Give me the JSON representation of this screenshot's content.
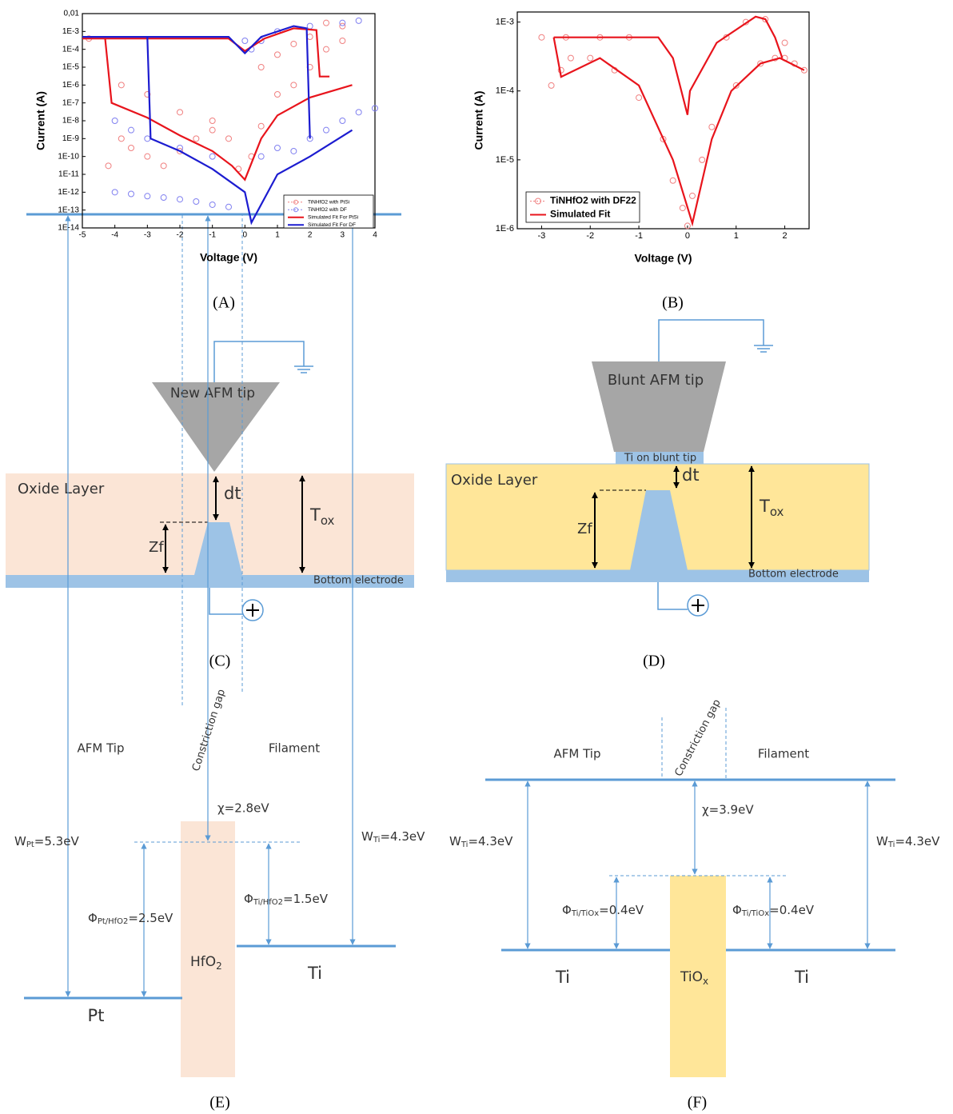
{
  "chart_data": [
    {
      "type": "line",
      "caption": "(A)",
      "x_label": "Voltage (V)",
      "y_label": "Current (A)",
      "ylog": true,
      "xlim": [
        -5,
        4
      ],
      "xticks": [
        -5,
        -4,
        -3,
        -2,
        -1,
        0,
        1,
        2,
        3,
        4
      ],
      "ylim": [
        1e-14,
        0.01
      ],
      "yticks": [
        {
          "value": 0.01,
          "label": "0,01"
        },
        {
          "value": 0.001,
          "label": "1E-3"
        },
        {
          "value": 0.0001,
          "label": "1E-4"
        },
        {
          "value": 1e-05,
          "label": "1E-5"
        },
        {
          "value": 1e-06,
          "label": "1E-6"
        },
        {
          "value": 1e-07,
          "label": "1E-7"
        },
        {
          "value": 1e-08,
          "label": "1E-8"
        },
        {
          "value": 1e-09,
          "label": "1E-9"
        },
        {
          "value": 1e-10,
          "label": "1E-10"
        },
        {
          "value": 1e-11,
          "label": "1E-11"
        },
        {
          "value": 1e-12,
          "label": "1E-12"
        },
        {
          "value": 1e-13,
          "label": "1E-13"
        },
        {
          "value": 1e-14,
          "label": "1E-14"
        }
      ],
      "legend": "lower right",
      "series": [
        {
          "name": "TiNHfO2 with PtSi",
          "color": "#f08080",
          "style": "markers",
          "x": [
            -4.8,
            -4.2,
            -3.8,
            -3.5,
            -3,
            -2.5,
            -2,
            -1.5,
            -1,
            -0.5,
            -0.2,
            0.2,
            0.5,
            1,
            1.5,
            2,
            2.5,
            3,
            -3.8,
            -3,
            -2,
            -1,
            0.5,
            1,
            1.5,
            2,
            2.5,
            3
          ],
          "values": [
            0.0004,
            3e-11,
            1e-09,
            3e-10,
            1e-10,
            3e-11,
            2e-10,
            1e-09,
            3e-09,
            1e-09,
            2e-11,
            1e-10,
            5e-09,
            3e-07,
            1e-06,
            1e-05,
            0.0001,
            0.0003,
            1e-06,
            3e-07,
            3e-08,
            1e-08,
            1e-05,
            5e-05,
            0.0002,
            0.0005,
            0.003,
            0.002
          ]
        },
        {
          "name": "TiNHfO2 with DF",
          "color": "#8080f0",
          "style": "markers",
          "x": [
            -4,
            -3.5,
            -3,
            -2.5,
            -2,
            -1.5,
            -1,
            -0.5,
            -4,
            -3.5,
            -3,
            -2,
            -1,
            0,
            0.5,
            1,
            1.5,
            2,
            2.5,
            3,
            3.5,
            4,
            0.2,
            0.5,
            1,
            2,
            3,
            3.5
          ],
          "values": [
            1e-12,
            8e-13,
            6e-13,
            5e-13,
            4e-13,
            3e-13,
            2e-13,
            1.5e-13,
            1e-08,
            3e-09,
            1e-09,
            3e-10,
            1e-10,
            0.0003,
            1e-10,
            3e-10,
            2e-10,
            1e-09,
            3e-09,
            1e-08,
            3e-08,
            5e-08,
            0.0001,
            0.0003,
            0.001,
            0.002,
            0.003,
            0.004
          ]
        },
        {
          "name": "Simulated Fit For PtSi",
          "color": "#e8141c",
          "style": "line",
          "x": [
            -5,
            -4.3,
            -4.1,
            -3,
            -2,
            -1,
            -0.4,
            0,
            0.5,
            1,
            2,
            3.3,
            null,
            -5,
            -0.5,
            0,
            0.6,
            1.5,
            2.2,
            2.3,
            2.6
          ],
          "values": [
            0.0004,
            0.0004,
            1e-07,
            1.5e-08,
            1.5e-09,
            2e-10,
            3e-11,
            5e-12,
            1e-09,
            2e-08,
            2e-07,
            1e-06,
            null,
            0.0004,
            0.0004,
            8e-05,
            0.0004,
            0.0015,
            0.0012,
            3e-06,
            3e-06
          ]
        },
        {
          "name": "Simulated Fit For DF",
          "color": "#1c1cd0",
          "style": "line",
          "x": [
            -5,
            -3,
            -2.9,
            -2,
            -1,
            0,
            0.2,
            1,
            2,
            3.3,
            null,
            -5,
            -0.5,
            0,
            0.5,
            1.5,
            1.9,
            2.0
          ],
          "values": [
            0.0005,
            0.0005,
            1e-09,
            2e-10,
            2e-11,
            1e-12,
            2e-14,
            1e-11,
            1e-10,
            3e-09,
            null,
            0.0005,
            0.0005,
            6e-05,
            0.0005,
            0.002,
            0.0015,
            1e-09
          ]
        }
      ]
    },
    {
      "type": "line",
      "caption": "(B)",
      "x_label": "Voltage (V)",
      "y_label": "Current (A)",
      "ylog": true,
      "xlim": [
        -3.5,
        2.5
      ],
      "xticks": [
        -3,
        -2,
        -1,
        0,
        1,
        2
      ],
      "ylim": [
        1e-06,
        0.0014
      ],
      "yticks": [
        {
          "value": 1e-06,
          "label": "1E-6"
        },
        {
          "value": 1e-05,
          "label": "1E-5"
        },
        {
          "value": 0.0001,
          "label": "1E-4"
        },
        {
          "value": 0.001,
          "label": "1E-3"
        }
      ],
      "legend": "lower left",
      "series": [
        {
          "name": "TiNHfO2 with DF22",
          "color": "#f08080",
          "style": "markers",
          "x": [
            -3,
            -2.8,
            -2.6,
            -2.4,
            -2,
            -1.5,
            -1,
            -0.5,
            -0.3,
            -0.1,
            0,
            0.1,
            0.3,
            0.5,
            1,
            1.5,
            1.8,
            2,
            2.2,
            2.4,
            -2.5,
            -1.8,
            -1.2,
            0.8,
            1.2,
            1.6,
            2.0
          ],
          "values": [
            0.0006,
            0.00012,
            0.0002,
            0.0003,
            0.0003,
            0.0002,
            8e-05,
            2e-05,
            5e-06,
            2e-06,
            1.1e-06,
            3e-06,
            1e-05,
            3e-05,
            0.00012,
            0.00025,
            0.0003,
            0.0003,
            0.00025,
            0.0002,
            0.0006,
            0.0006,
            0.0006,
            0.0006,
            0.001,
            0.0011,
            0.0005
          ]
        },
        {
          "name": "Simulated Fit",
          "color": "#e8141c",
          "style": "line",
          "x": [
            -2.75,
            -2.6,
            -1.8,
            -1,
            -0.3,
            0.1,
            0.5,
            0.9,
            1.5,
            1.9,
            2.4,
            null,
            -2.75,
            -0.6,
            -0.3,
            0,
            0.05,
            0.6,
            1.4,
            1.6,
            1.8,
            1.95
          ],
          "values": [
            0.0006,
            0.00016,
            0.0003,
            0.00012,
            1e-05,
            1.2e-06,
            2e-05,
            0.0001,
            0.00025,
            0.0003,
            0.0002,
            null,
            0.0006,
            0.0006,
            0.0003,
            4.5e-05,
            0.0001,
            0.0005,
            0.0012,
            0.0011,
            0.0006,
            0.0003
          ]
        }
      ]
    }
  ],
  "diagrams": {
    "C": {
      "caption": "(C)",
      "tip": "New AFM tip",
      "oxide": "Oxide Layer",
      "dt": "dt",
      "zf": "Zf",
      "tox": {
        "symbol": "T",
        "sub": "ox"
      },
      "electrode": "Bottom electrode"
    },
    "D": {
      "caption": "(D)",
      "tip": "Blunt AFM tip",
      "tip_coating": "Ti on blunt tip",
      "oxide": "Oxide Layer",
      "dt": "dt",
      "zf": "Zf",
      "tox": {
        "symbol": "T",
        "sub": "ox"
      },
      "electrode": "Bottom electrode"
    },
    "E": {
      "caption": "(E)",
      "left_label": "AFM Tip",
      "gap": "Constriction gap",
      "right_label": "Filament",
      "chi": "χ=2.8eV",
      "w_left": {
        "symbol": "W",
        "sub": "Pt",
        "value": "=5.3eV"
      },
      "phi_left": {
        "symbol": "Φ",
        "sub": "Pt/HfO2",
        "value": "=2.5eV"
      },
      "phi_right": {
        "symbol": "Φ",
        "sub": "Ti/HfO2",
        "value": "=1.5eV"
      },
      "w_right": {
        "symbol": "W",
        "sub": "Ti",
        "value": "=4.3eV"
      },
      "oxide": {
        "symbol": "HfO",
        "sub": "2"
      },
      "left_metal": "Pt",
      "right_metal": "Ti"
    },
    "F": {
      "caption": "(F)",
      "left_label": "AFM Tip",
      "gap": "Constriction gap",
      "right_label": "Filament",
      "chi": "χ=3.9eV",
      "w_left": {
        "symbol": "W",
        "sub": "Ti",
        "value": "=4.3eV"
      },
      "phi_left": {
        "symbol": "Φ",
        "sub": "Ti/TiOx",
        "value": "=0.4eV"
      },
      "phi_right": {
        "symbol": "Φ",
        "sub": "Ti/TiOx",
        "value": "=0.4eV"
      },
      "w_right": {
        "symbol": "W",
        "sub": "Ti",
        "value": "=4.3eV"
      },
      "oxide": {
        "symbol": "TiO",
        "sub": "x"
      },
      "left_metal": "Ti",
      "right_metal": "Ti"
    }
  }
}
